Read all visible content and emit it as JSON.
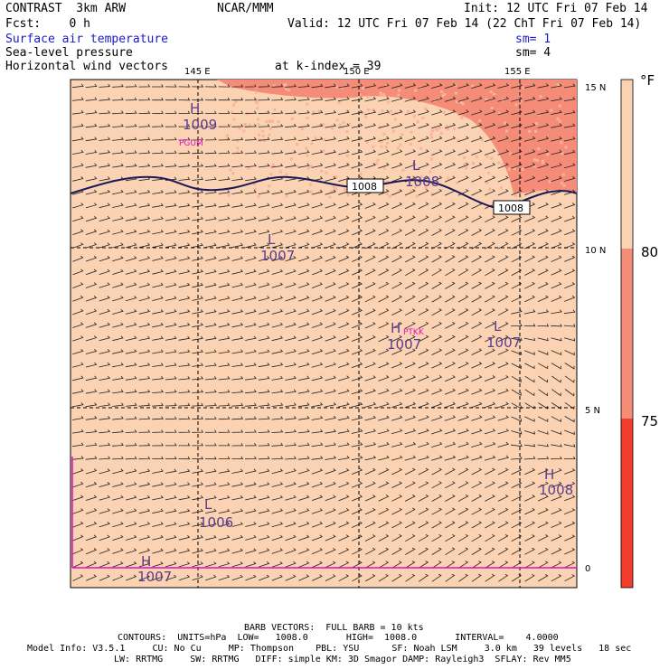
{
  "header": {
    "left1": "CONTRAST  3km ARW",
    "center1": "NCAR/MMM",
    "right1": "Init: 12 UTC Fri 07 Feb 14",
    "left2": "Fcst:    0 h",
    "right2": "Valid: 12 UTC Fri 07 Feb 14 (22 ChT Fri 07 Feb 14)",
    "field1": "Surface air temperature",
    "sm1": "sm= 1",
    "field2": "Sea-level pressure",
    "sm2": "sm= 4",
    "field3": "Horizontal wind vectors",
    "kindex": "at k-index = 39"
  },
  "axes": {
    "lon_labels": [
      "145 E",
      "150 E",
      "155 E"
    ],
    "lat_labels": [
      "15 N",
      "10 N",
      "5 N",
      "0"
    ]
  },
  "colorbar": {
    "unit": "°F",
    "labels": [
      "80",
      "75"
    ],
    "colors": [
      "#fbd2b2",
      "#f58c78",
      "#f23c2c"
    ]
  },
  "pressure_labels": [
    {
      "kind": "H",
      "value": "1009"
    },
    {
      "kind": "L",
      "value": "1008"
    },
    {
      "kind": "L",
      "value": "1007"
    },
    {
      "kind": "H",
      "value": "1007"
    },
    {
      "kind": "L",
      "value": "1007"
    },
    {
      "kind": "H",
      "value": "1008"
    },
    {
      "kind": "L",
      "value": "1006"
    },
    {
      "kind": "H",
      "value": "1007"
    }
  ],
  "contour_labels": [
    "1008",
    "1008"
  ],
  "stations": [
    "PGUM",
    "PTKK"
  ],
  "footer": {
    "line1": "BARB VECTORS:  FULL BARB = 10 kts",
    "line2": "CONTOURS:  UNITS=hPa  LOW=   1008.0       HIGH=  1008.0       INTERVAL=    4.0000",
    "line3": "Model Info: V3.5.1     CU: No Cu     MP: Thompson    PBL: YSU      SF: Noah LSM     3.0 km   39 levels   18 sec",
    "line4": "LW: RRTMG     SW: RRTMG   DIFF: simple KM: 3D Smagor DAMP: Rayleigh3  SFLAY: Rev MM5"
  },
  "colors": {
    "background_field": "#fbd2b2",
    "warm_field": "#f58c78",
    "contour": "#1a1a5a",
    "header_blue": "#1a1ac8",
    "magenta": "#e010c0"
  }
}
